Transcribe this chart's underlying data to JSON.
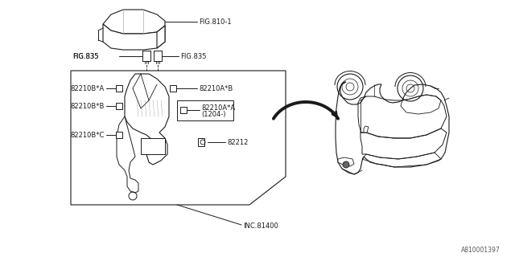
{
  "bg_color": "#ffffff",
  "line_color": "#1a1a1a",
  "fig_width": 6.4,
  "fig_height": 3.2,
  "dpi": 100,
  "watermark": "A810001397",
  "labels": {
    "fig810": "FIG.810-1",
    "fig835_left": "FIG.835",
    "fig835_right": "FIG.835",
    "part_a_b": "82210A*B",
    "part_a_a": "82210A*A",
    "part_a_a_sub": "(1204-)",
    "part_b_a": "82210B*A",
    "part_b_b": "82210B*B",
    "part_b_c": "82210B*C",
    "part_82212": "82212",
    "inc81400": "INC.81400"
  },
  "colors": {
    "lc": "#1a1a1a",
    "gray": "#888888",
    "light_gray": "#dddddd"
  }
}
